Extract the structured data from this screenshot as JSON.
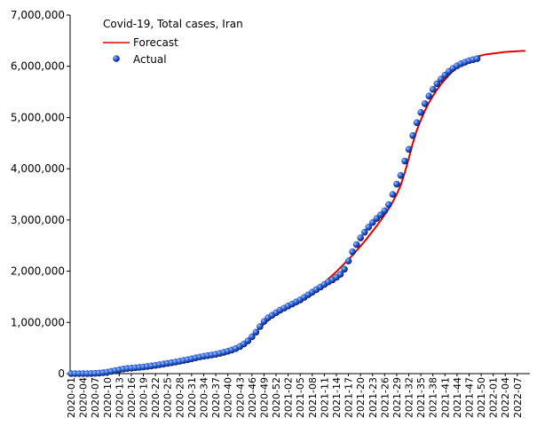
{
  "chart_data": {
    "type": "line",
    "title": "Covid-19, Total cases, Iran",
    "categories": [
      "2020-01",
      null,
      null,
      "2020-04",
      null,
      null,
      "2020-07",
      null,
      null,
      "2020-10",
      null,
      null,
      "2020-13",
      null,
      null,
      "2020-16",
      null,
      null,
      "2020-19",
      null,
      null,
      "2020-22",
      null,
      null,
      "2020-25",
      null,
      null,
      "2020-28",
      null,
      null,
      "2020-31",
      null,
      null,
      "2020-34",
      null,
      null,
      "2020-37",
      null,
      null,
      "2020-40",
      null,
      null,
      "2020-43",
      null,
      null,
      "2020-46",
      null,
      null,
      "2020-49",
      null,
      null,
      "2020-52",
      null,
      null,
      "2021-02",
      null,
      null,
      "2021-05",
      null,
      null,
      "2021-08",
      null,
      null,
      "2021-11",
      null,
      null,
      "2021-14",
      null,
      null,
      "2021-17",
      null,
      null,
      "2021-20",
      null,
      null,
      "2021-23",
      null,
      null,
      "2021-26",
      null,
      null,
      "2021-29",
      null,
      null,
      "2021-32",
      null,
      null,
      "2021-35",
      null,
      null,
      "2021-38",
      null,
      null,
      "2021-41",
      null,
      null,
      "2021-44",
      null,
      null,
      "2021-47",
      null,
      null,
      "2021-50",
      null,
      null,
      "2022-01",
      null,
      null,
      "2022-04",
      null,
      null,
      "2022-07",
      null,
      null
    ],
    "series": [
      {
        "name": "Forecast",
        "color": "#e00000",
        "values": [
          20000,
          22000,
          24000,
          26000,
          28000,
          30000,
          33000,
          36000,
          40000,
          44000,
          50000,
          56000,
          62000,
          70000,
          78000,
          86000,
          95000,
          104000,
          114000,
          125000,
          137000,
          150000,
          163000,
          177000,
          192000,
          207000,
          222000,
          238000,
          254000,
          270000,
          287000,
          304000,
          322000,
          340000,
          360000,
          380000,
          400000,
          422000,
          446000,
          472000,
          500000,
          532000,
          570000,
          615000,
          670000,
          740000,
          820000,
          900000,
          970000,
          1040000,
          1100000,
          1150000,
          1200000,
          1250000,
          1300000,
          1350000,
          1400000,
          1450000,
          1500000,
          1550000,
          1600000,
          1660000,
          1720000,
          1780000,
          1850000,
          1920000,
          1990000,
          2070000,
          2150000,
          2230000,
          2310000,
          2400000,
          2490000,
          2580000,
          2680000,
          2780000,
          2880000,
          2990000,
          3100000,
          3220000,
          3350000,
          3500000,
          3680000,
          3920000,
          4200000,
          4500000,
          4750000,
          4950000,
          5130000,
          5290000,
          5420000,
          5540000,
          5650000,
          5740000,
          5830000,
          5910000,
          5980000,
          6040000,
          6090000,
          6130000,
          6160000,
          6190000,
          6210000,
          6230000,
          6240000,
          6250000,
          6260000,
          6270000,
          6280000,
          6285000,
          6290000,
          6295000,
          6300000,
          6300000
        ]
      },
      {
        "name": "Actual",
        "color": "#1f4fc8",
        "values": [
          0,
          0,
          0,
          0,
          0,
          2000,
          5000,
          10000,
          18000,
          30000,
          45000,
          60000,
          75000,
          90000,
          100000,
          108000,
          115000,
          122000,
          130000,
          140000,
          150000,
          162000,
          175000,
          188000,
          200000,
          213000,
          227000,
          241000,
          256000,
          272000,
          290000,
          308000,
          325000,
          340000,
          352000,
          364000,
          378000,
          395000,
          415000,
          437000,
          462000,
          490000,
          530000,
          580000,
          640000,
          720000,
          810000,
          920000,
          1020000,
          1090000,
          1140000,
          1190000,
          1240000,
          1280000,
          1320000,
          1360000,
          1400000,
          1440000,
          1490000,
          1540000,
          1590000,
          1640000,
          1690000,
          1740000,
          1790000,
          1830000,
          1880000,
          1940000,
          2040000,
          2200000,
          2380000,
          2520000,
          2650000,
          2760000,
          2860000,
          2950000,
          3030000,
          3100000,
          3180000,
          3300000,
          3500000,
          3700000,
          3870000,
          4150000,
          4380000,
          4650000,
          4900000,
          5100000,
          5270000,
          5420000,
          5550000,
          5660000,
          5750000,
          5830000,
          5900000,
          5960000,
          6010000,
          6050000,
          6080000,
          6110000,
          6130000,
          6150000,
          null,
          null,
          null,
          null,
          null,
          null,
          null,
          null,
          null,
          null,
          null,
          null
        ]
      }
    ],
    "ylim": [
      0,
      7000000
    ],
    "yticks": [
      0,
      {
        "value": 1000000,
        "label": "1,000,000"
      },
      {
        "value": 2000000,
        "label": "2,000,000"
      },
      {
        "value": 3000000,
        "label": "3,000,000"
      },
      {
        "value": 4000000,
        "label": "4,000,000"
      },
      {
        "value": 5000000,
        "label": "5,000,000"
      },
      {
        "value": 6000000,
        "label": "6,000,000"
      },
      {
        "value": 7000000,
        "label": "7,000,000"
      }
    ],
    "grid": false
  }
}
